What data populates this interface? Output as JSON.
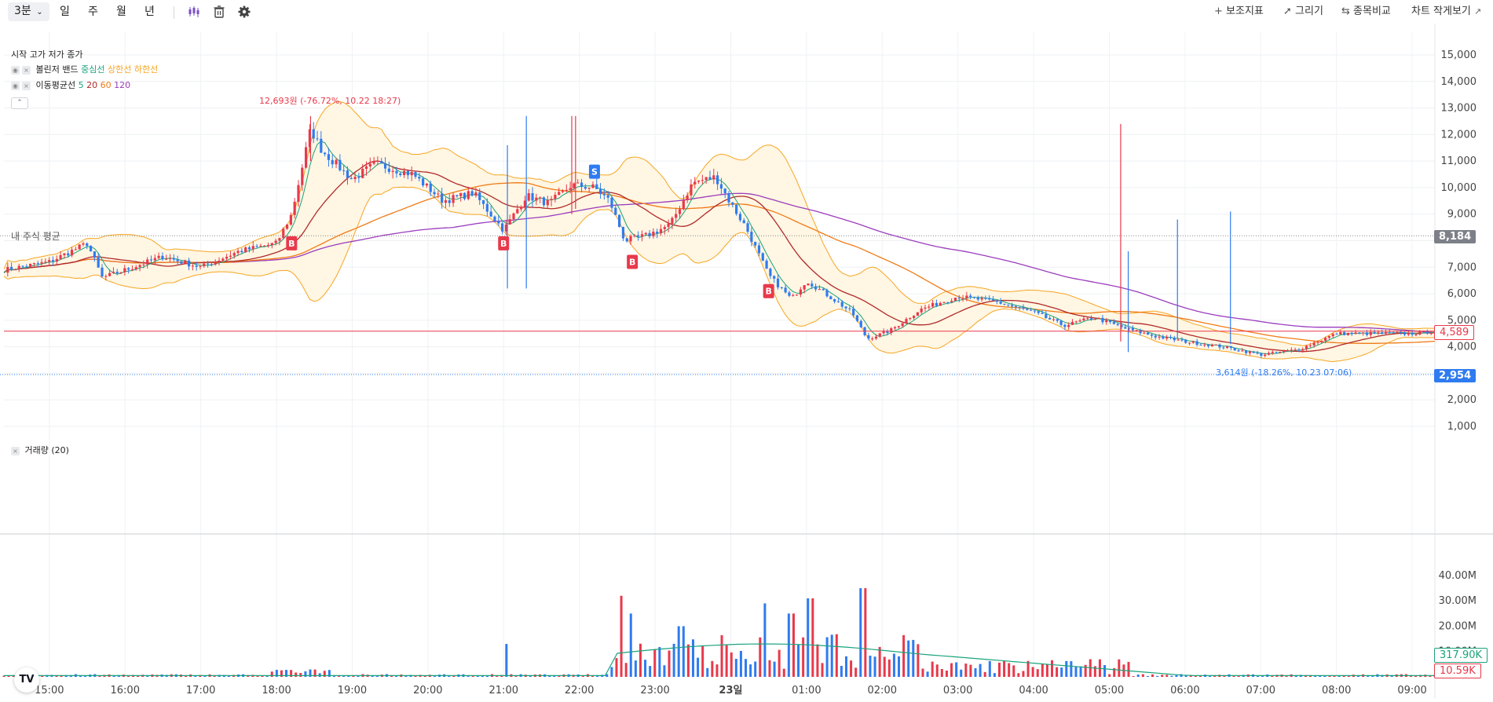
{
  "toolbar": {
    "interval": "3분",
    "periods": [
      "일",
      "주",
      "월",
      "년"
    ],
    "right": {
      "indicators": "보조지표",
      "draw": "그리기",
      "compare": "종목비교",
      "small_view": "차트 작게보기"
    },
    "icons": [
      "candle-style-icon",
      "trash-icon",
      "settings-icon"
    ]
  },
  "legend": {
    "ohlc": "시작 고가 저가 종가",
    "bb": {
      "name": "볼린저 밴드",
      "mid": "중심선",
      "upper": "상한선",
      "lower": "하한선"
    },
    "ma": {
      "name": "이동평균선",
      "periods": [
        "5",
        "20",
        "60",
        "120"
      ]
    },
    "volume": "거래량 (20)"
  },
  "annotations": {
    "high": "12,693원 (-76.72%, 10.22 18:27)",
    "low": "3,614원 (-18.26%, 10.23 07:06)",
    "avg_label": "내 주식 평균"
  },
  "price_tags": {
    "avg": "8,184",
    "last": "4,589",
    "line2": "2,954",
    "vol_ma": "317.90K",
    "vol_last": "10.59K"
  },
  "colors": {
    "up": "#e8394b",
    "down": "#2f7bf0",
    "bb_mid": "#1aa37c",
    "bb_band": "#f5a623",
    "ma5": "#1aa37c",
    "ma20": "#b02a2a",
    "ma60": "#f07b17",
    "ma120": "#9b3dbd"
  },
  "chart_data": [
    {
      "type": "candlestick",
      "y_ticks": [
        "15,000",
        "14,000",
        "13,000",
        "12,000",
        "11,000",
        "10,000",
        "9,000",
        "8,000",
        "7,000",
        "6,000",
        "5,000",
        "4,000",
        "3,000",
        "2,000",
        "1,000"
      ],
      "x_ticks": [
        "15:00",
        "16:00",
        "17:00",
        "18:00",
        "19:00",
        "20:00",
        "21:00",
        "22:00",
        "23:00",
        "23일",
        "01:00",
        "02:00",
        "03:00",
        "04:00",
        "05:00",
        "06:00",
        "07:00",
        "08:00",
        "09:00"
      ],
      "ylim": [
        500,
        15500
      ],
      "x_range_hours": [
        14.4,
        33.3
      ],
      "close_path": [
        [
          14.4,
          6900
        ],
        [
          15.0,
          7200
        ],
        [
          15.5,
          7900
        ],
        [
          15.7,
          6600
        ],
        [
          16.0,
          6900
        ],
        [
          16.5,
          7400
        ],
        [
          17.0,
          7000
        ],
        [
          17.5,
          7600
        ],
        [
          18.0,
          7900
        ],
        [
          18.2,
          9000
        ],
        [
          18.45,
          12200
        ],
        [
          18.6,
          11400
        ],
        [
          19.0,
          10300
        ],
        [
          19.3,
          10900
        ],
        [
          19.8,
          10500
        ],
        [
          20.2,
          9500
        ],
        [
          20.6,
          9800
        ],
        [
          21.0,
          8400
        ],
        [
          21.3,
          9700
        ],
        [
          21.6,
          9400
        ],
        [
          21.9,
          10100
        ],
        [
          22.2,
          10000
        ],
        [
          22.4,
          9500
        ],
        [
          22.6,
          8000
        ],
        [
          22.9,
          8200
        ],
        [
          23.2,
          8600
        ],
        [
          23.5,
          10200
        ],
        [
          23.8,
          10400
        ],
        [
          24.0,
          9400
        ],
        [
          24.2,
          8500
        ],
        [
          24.5,
          6700
        ],
        [
          24.8,
          5800
        ],
        [
          25.0,
          6500
        ],
        [
          25.3,
          5900
        ],
        [
          25.6,
          5300
        ],
        [
          25.8,
          4300
        ],
        [
          26.1,
          4600
        ],
        [
          26.5,
          5400
        ],
        [
          27.0,
          5900
        ],
        [
          27.5,
          5700
        ],
        [
          28.0,
          5300
        ],
        [
          28.4,
          4800
        ],
        [
          28.8,
          5100
        ],
        [
          29.2,
          4700
        ],
        [
          29.6,
          4400
        ],
        [
          30.0,
          4200
        ],
        [
          30.5,
          4000
        ],
        [
          31.0,
          3700
        ],
        [
          31.5,
          3900
        ],
        [
          32.0,
          4500
        ],
        [
          32.5,
          4500
        ],
        [
          33.0,
          4500
        ],
        [
          33.3,
          4589
        ]
      ],
      "signals": [
        {
          "label": "B",
          "x": 18.2,
          "y": 7900
        },
        {
          "label": "B",
          "x": 21.0,
          "y": 7900
        },
        {
          "label": "B",
          "x": 22.7,
          "y": 7200
        },
        {
          "label": "B",
          "x": 24.5,
          "y": 6100
        },
        {
          "label": "S",
          "x": 22.2,
          "y": 10600
        }
      ],
      "avg_line": 8184,
      "last_price": 4589,
      "line2": 2954
    },
    {
      "type": "bar",
      "name": "거래량",
      "y_ticks": [
        "40.00M",
        "30.00M",
        "20.00M",
        "10.00M"
      ],
      "ylim": [
        0,
        44000000
      ],
      "peaks": [
        {
          "x": 21.05,
          "value": 13000000
        },
        {
          "x": 22.55,
          "value": 32000000
        },
        {
          "x": 22.7,
          "value": 25000000
        },
        {
          "x": 23.35,
          "value": 20000000
        },
        {
          "x": 24.45,
          "value": 29000000
        },
        {
          "x": 24.8,
          "value": 25000000
        },
        {
          "x": 25.05,
          "value": 31000000
        },
        {
          "x": 25.75,
          "value": 35000000
        }
      ],
      "ma_value": "317.90K",
      "last_value": "10.59K"
    }
  ]
}
